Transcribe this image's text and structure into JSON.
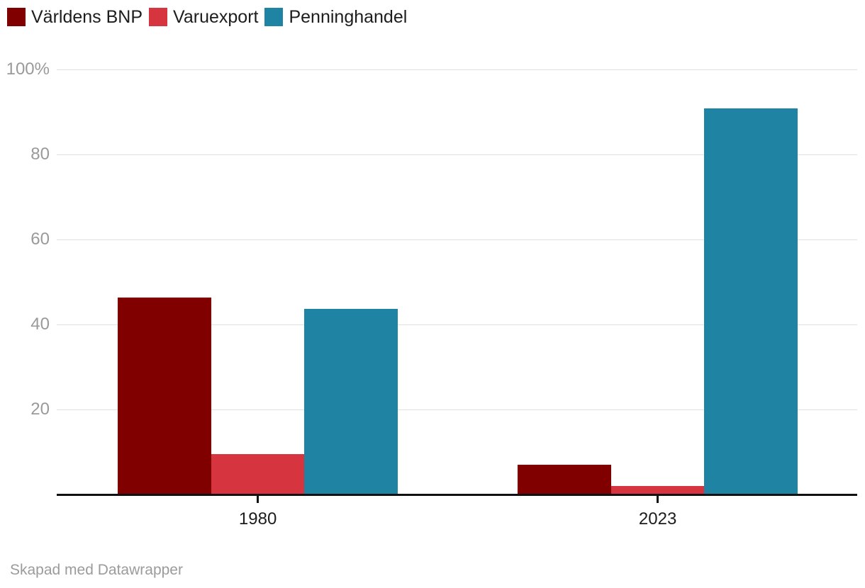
{
  "chart_data": {
    "type": "bar",
    "title": "",
    "categories": [
      "1980",
      "2023"
    ],
    "series": [
      {
        "name": "Världens BNP",
        "color": "#800000",
        "values": [
          46.3,
          7.0
        ]
      },
      {
        "name": "Varuexport",
        "color": "#d6343f",
        "values": [
          9.5,
          2.0
        ]
      },
      {
        "name": "Penninghandel",
        "color": "#1f84a3",
        "values": [
          43.7,
          90.8
        ]
      }
    ],
    "xlabel": "",
    "ylabel": "",
    "ylim": [
      0,
      100
    ],
    "y_ticks": [
      {
        "value": 100,
        "label": "100%"
      },
      {
        "value": 80,
        "label": "80"
      },
      {
        "value": 60,
        "label": "60"
      },
      {
        "value": 40,
        "label": "40"
      },
      {
        "value": 20,
        "label": "20"
      }
    ],
    "grid": true,
    "legend_position": "top",
    "colors": {
      "axis_line": "#111111",
      "gridline": "#e0e0e0",
      "y_tick_text": "#9a9a9a",
      "x_tick_text": "#1d1d1d",
      "legend_text": "#1d1d1d"
    }
  },
  "footer": {
    "credit": "Skapad med Datawrapper"
  }
}
